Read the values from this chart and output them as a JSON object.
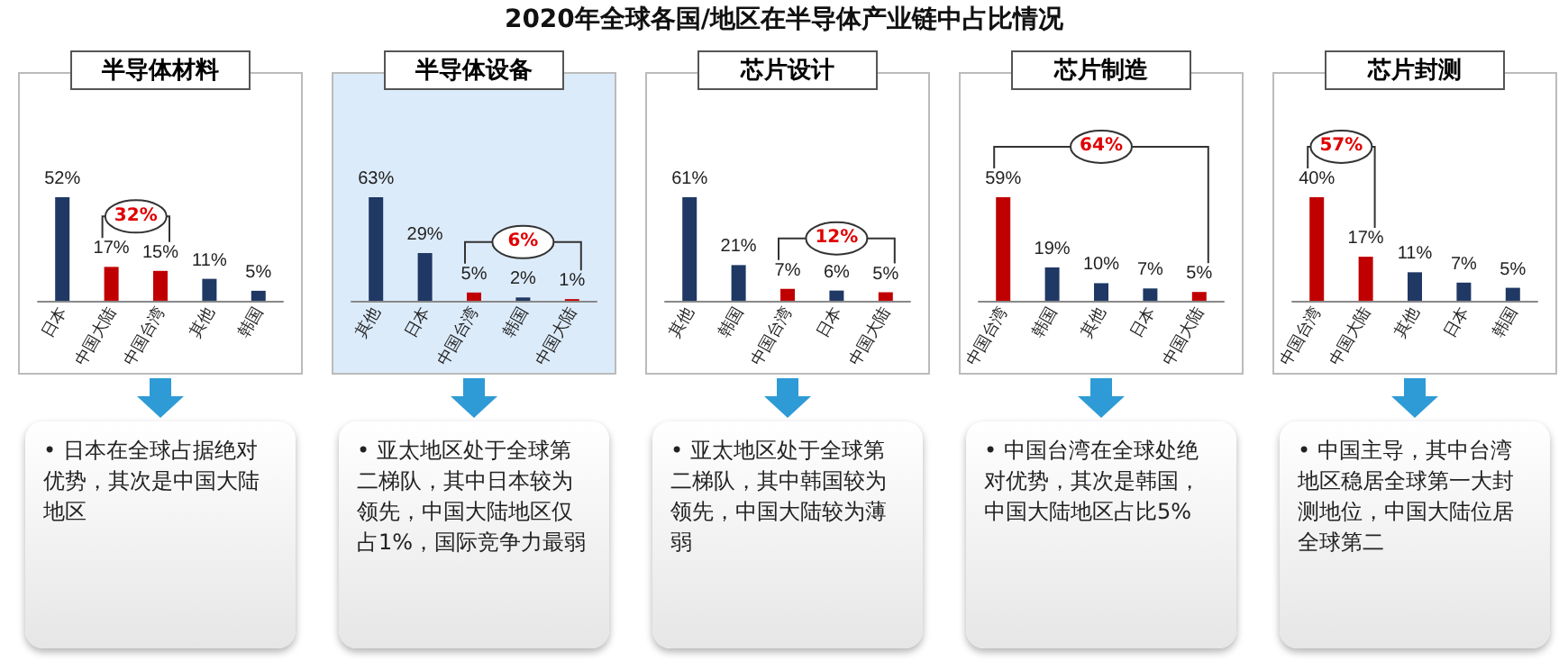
{
  "chart_data": [
    {
      "type": "other",
      "title": "2020年全球各国/地区在半导体产业链中占比情况"
    },
    {
      "type": "bar",
      "title": "半导体材料",
      "categories": [
        "日本",
        "中国大陆",
        "中国台湾",
        "其他",
        "韩国"
      ],
      "values": [
        52,
        17,
        15,
        11,
        5
      ],
      "value_labels": [
        "52%",
        "17%",
        "15%",
        "11%",
        "5%"
      ],
      "colors": [
        "#1f3864",
        "#c00000",
        "#c00000",
        "#1f3864",
        "#1f3864"
      ],
      "annotations": [
        "32%",
        "• 日本在全球占据绝对优势，其次是中国大陆地区"
      ]
    },
    {
      "type": "bar",
      "title": "半导体设备",
      "categories": [
        "其他",
        "日本",
        "中国台湾",
        "韩国",
        "中国大陆"
      ],
      "values": [
        63,
        29,
        5,
        2,
        1
      ],
      "value_labels": [
        "63%",
        "29%",
        "5%",
        "2%",
        "1%"
      ],
      "colors": [
        "#1f3864",
        "#1f3864",
        "#c00000",
        "#1f3864",
        "#c00000"
      ],
      "annotations": [
        "6%",
        "• 亚太地区处于全球第二梯队，其中日本较为领先，中国大陆地区仅占1%，国际竞争力最弱"
      ]
    },
    {
      "type": "bar",
      "title": "芯片设计",
      "categories": [
        "其他",
        "韩国",
        "中国台湾",
        "日本",
        "中国大陆"
      ],
      "values": [
        61,
        21,
        7,
        6,
        5
      ],
      "value_labels": [
        "61%",
        "21%",
        "7%",
        "6%",
        "5%"
      ],
      "colors": [
        "#1f3864",
        "#1f3864",
        "#c00000",
        "#1f3864",
        "#c00000"
      ],
      "annotations": [
        "12%",
        "• 亚太地区处于全球第二梯队，其中韩国较为领先，中国大陆较为薄弱"
      ]
    },
    {
      "type": "bar",
      "title": "芯片制造",
      "categories": [
        "中国台湾",
        "韩国",
        "其他",
        "日本",
        "中国大陆"
      ],
      "values": [
        59,
        19,
        10,
        7,
        5
      ],
      "value_labels": [
        "59%",
        "19%",
        "10%",
        "7%",
        "5%"
      ],
      "colors": [
        "#c00000",
        "#1f3864",
        "#1f3864",
        "#1f3864",
        "#c00000"
      ],
      "annotations": [
        "64%",
        "• 中国台湾在全球处绝对优势，其次是韩国，中国大陆地区占比5%"
      ]
    },
    {
      "type": "bar",
      "title": "芯片封测",
      "categories": [
        "中国台湾",
        "中国大陆",
        "其他",
        "日本",
        "韩国"
      ],
      "values": [
        40,
        17,
        11,
        7,
        5
      ],
      "value_labels": [
        "40%",
        "17%",
        "11%",
        "7%",
        "5%"
      ],
      "colors": [
        "#c00000",
        "#c00000",
        "#1f3864",
        "#1f3864",
        "#1f3864"
      ],
      "annotations": [
        "57%",
        "• 中国主导，其中台湾地区稳居全球第一大封测地位，中国大陆位居全球第二"
      ]
    }
  ]
}
